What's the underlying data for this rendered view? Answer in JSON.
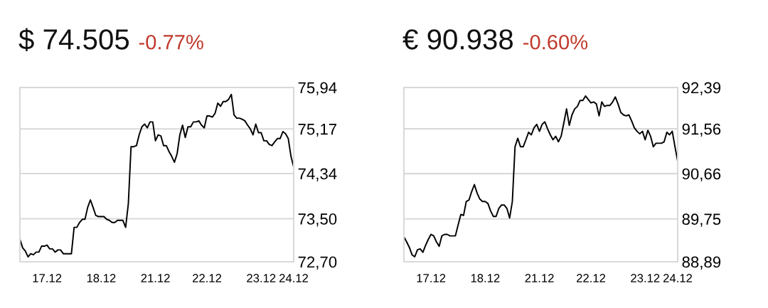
{
  "chart_data": [
    {
      "type": "line",
      "title": "$ 74.505",
      "subtitle": "-0.77%",
      "categories": [
        null,
        null,
        null,
        null,
        null,
        null,
        null,
        null,
        null,
        null,
        "17.12",
        null,
        null,
        null,
        null,
        null,
        null,
        null,
        null,
        null,
        null,
        null,
        null,
        null,
        null,
        null,
        null,
        null,
        null,
        null,
        "18.12",
        null,
        null,
        null,
        null,
        null,
        null,
        null,
        null,
        null,
        null,
        null,
        null,
        null,
        null,
        null,
        null,
        null,
        null,
        null,
        "21.12",
        null,
        null,
        null,
        null,
        null,
        null,
        null,
        null,
        null,
        null,
        null,
        null,
        null,
        null,
        null,
        null,
        null,
        null,
        "22.12",
        null,
        null,
        null,
        null,
        null,
        null,
        null,
        null,
        null,
        null,
        null,
        null,
        null,
        null,
        null,
        null,
        null,
        null,
        null,
        "23.12",
        null,
        null,
        null,
        null,
        null,
        null,
        null,
        null,
        null,
        null,
        null,
        "24.12"
      ],
      "series": [
        {
          "color": "#000000",
          "values": [
            73.12,
            72.96,
            72.9,
            72.79,
            72.85,
            72.83,
            72.88,
            72.88,
            72.99,
            72.99,
            73.01,
            72.94,
            72.94,
            72.88,
            72.92,
            72.92,
            72.85,
            72.85,
            72.85,
            72.85,
            73.34,
            73.34,
            73.43,
            73.49,
            73.49,
            73.71,
            73.85,
            73.71,
            73.56,
            73.54,
            73.54,
            73.54,
            73.49,
            73.47,
            73.43,
            73.43,
            73.47,
            73.47,
            73.47,
            73.34,
            73.78,
            74.84,
            74.84,
            74.86,
            75.06,
            75.21,
            75.26,
            75.19,
            75.3,
            75.3,
            74.95,
            75.06,
            75.04,
            74.86,
            74.86,
            74.75,
            74.66,
            74.55,
            74.71,
            75.06,
            75.24,
            75.01,
            75.21,
            75.21,
            75.3,
            75.3,
            75.32,
            75.24,
            75.19,
            75.41,
            75.41,
            75.39,
            75.46,
            75.65,
            75.59,
            75.68,
            75.68,
            75.72,
            75.81,
            75.43,
            75.37,
            75.37,
            75.35,
            75.32,
            75.24,
            75.17,
            75.06,
            75.26,
            75.1,
            75.1,
            74.95,
            74.95,
            74.88,
            74.86,
            74.93,
            74.99,
            74.99,
            75.12,
            75.08,
            74.99,
            74.66,
            74.46
          ]
        }
      ],
      "ylim": [
        72.7,
        75.94
      ],
      "yticks": [
        {
          "value": 72.7,
          "label": "72,70"
        },
        {
          "value": 73.5,
          "label": "73,50"
        },
        {
          "value": 74.34,
          "label": "74,34"
        },
        {
          "value": 75.17,
          "label": "75,17"
        },
        {
          "value": 75.94,
          "label": "75,94"
        }
      ],
      "grid": "y"
    },
    {
      "type": "line",
      "title": "€ 90.938",
      "subtitle": "-0.60%",
      "categories": [
        null,
        null,
        null,
        null,
        null,
        null,
        null,
        null,
        null,
        null,
        "17.12",
        null,
        null,
        null,
        null,
        null,
        null,
        null,
        null,
        null,
        null,
        null,
        null,
        null,
        null,
        null,
        null,
        null,
        null,
        null,
        "18.12",
        null,
        null,
        null,
        null,
        null,
        null,
        null,
        null,
        null,
        null,
        null,
        null,
        null,
        null,
        null,
        null,
        null,
        null,
        null,
        "21.12",
        null,
        null,
        null,
        null,
        null,
        null,
        null,
        null,
        null,
        null,
        null,
        null,
        null,
        null,
        null,
        null,
        null,
        null,
        "22.12",
        null,
        null,
        null,
        null,
        null,
        null,
        null,
        null,
        null,
        null,
        null,
        null,
        null,
        null,
        null,
        null,
        null,
        null,
        null,
        "23.12",
        null,
        null,
        null,
        null,
        null,
        null,
        null,
        null,
        null,
        null,
        null,
        "24.12"
      ],
      "series": [
        {
          "color": "#000000",
          "values": [
            89.39,
            89.29,
            89.18,
            89.03,
            88.99,
            89.13,
            89.15,
            89.08,
            89.22,
            89.34,
            89.44,
            89.41,
            89.29,
            89.2,
            89.41,
            89.44,
            89.44,
            89.41,
            89.41,
            89.41,
            89.63,
            89.84,
            89.82,
            90.1,
            90.13,
            90.3,
            90.44,
            90.27,
            90.15,
            90.1,
            90.1,
            90.06,
            89.91,
            89.8,
            89.8,
            89.96,
            90.03,
            90.03,
            89.96,
            89.77,
            90.1,
            91.2,
            91.37,
            91.2,
            91.2,
            91.34,
            91.49,
            91.44,
            91.58,
            91.65,
            91.51,
            91.65,
            91.7,
            91.56,
            91.44,
            91.34,
            91.41,
            91.3,
            91.41,
            91.68,
            91.96,
            91.63,
            91.84,
            91.96,
            92.01,
            92.13,
            92.13,
            92.22,
            92.15,
            92.08,
            92.1,
            92.06,
            91.82,
            92.1,
            92.01,
            92.03,
            92.03,
            92.1,
            92.2,
            92.06,
            91.89,
            91.84,
            91.82,
            91.84,
            91.72,
            91.58,
            91.51,
            91.46,
            91.51,
            91.34,
            91.53,
            91.41,
            91.2,
            91.27,
            91.27,
            91.27,
            91.3,
            91.49,
            91.44,
            91.51,
            91.2,
            90.91
          ]
        }
      ],
      "ylim": [
        88.89,
        92.39
      ],
      "yticks": [
        {
          "value": 88.89,
          "label": "88,89"
        },
        {
          "value": 89.75,
          "label": "89,75"
        },
        {
          "value": 90.66,
          "label": "90,66"
        },
        {
          "value": 91.56,
          "label": "91,56"
        },
        {
          "value": 92.39,
          "label": "92,39"
        }
      ],
      "grid": "y"
    }
  ]
}
